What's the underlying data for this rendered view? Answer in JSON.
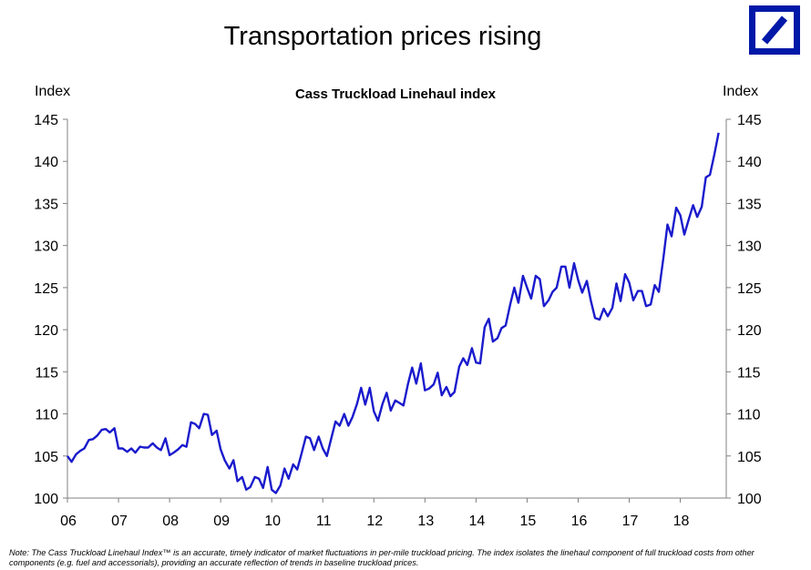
{
  "header": {
    "title": "Transportation prices rising"
  },
  "logo": {
    "name": "Deutsche Bank logo",
    "color": "#0018a8"
  },
  "note": "Note: The Cass Truckload Linehaul Index™ is an accurate, timely indicator of market fluctuations in per-mile truckload pricing. The index isolates the linehaul component of full truckload costs from other components (e.g. fuel and accessorials), providing an accurate reflection of trends in baseline truckload prices.",
  "chart_data": {
    "type": "line",
    "title": "Cass Truckload Linehaul index",
    "ylabel_left": "Index",
    "ylabel_right": "Index",
    "ylim": [
      100,
      145
    ],
    "yticks": [
      100,
      105,
      110,
      115,
      120,
      125,
      130,
      135,
      140,
      145
    ],
    "xlim": [
      2006.0,
      2018.9
    ],
    "xticks": [
      {
        "value": 2006,
        "label": "06"
      },
      {
        "value": 2007,
        "label": "07"
      },
      {
        "value": 2008,
        "label": "08"
      },
      {
        "value": 2009,
        "label": "09"
      },
      {
        "value": 2010,
        "label": "10"
      },
      {
        "value": 2011,
        "label": "11"
      },
      {
        "value": 2012,
        "label": "12"
      },
      {
        "value": 2013,
        "label": "13"
      },
      {
        "value": 2014,
        "label": "14"
      },
      {
        "value": 2015,
        "label": "15"
      },
      {
        "value": 2016,
        "label": "16"
      },
      {
        "value": 2017,
        "label": "17"
      },
      {
        "value": 2018,
        "label": "18"
      }
    ],
    "grid": false,
    "legend": "none",
    "series": [
      {
        "color": "#1a1acc",
        "points": [
          [
            2006.0,
            105.0
          ],
          [
            2006.08,
            104.3
          ],
          [
            2006.17,
            105.2
          ],
          [
            2006.25,
            105.6
          ],
          [
            2006.33,
            105.9
          ],
          [
            2006.42,
            106.9
          ],
          [
            2006.5,
            107.0
          ],
          [
            2006.58,
            107.4
          ],
          [
            2006.67,
            108.1
          ],
          [
            2006.75,
            108.2
          ],
          [
            2006.83,
            107.8
          ],
          [
            2006.92,
            108.3
          ],
          [
            2007.0,
            105.9
          ],
          [
            2007.08,
            105.9
          ],
          [
            2007.17,
            105.5
          ],
          [
            2007.25,
            105.9
          ],
          [
            2007.33,
            105.4
          ],
          [
            2007.42,
            106.1
          ],
          [
            2007.5,
            106.0
          ],
          [
            2007.58,
            106.0
          ],
          [
            2007.67,
            106.5
          ],
          [
            2007.75,
            106.0
          ],
          [
            2007.83,
            105.7
          ],
          [
            2007.92,
            107.1
          ],
          [
            2008.0,
            105.1
          ],
          [
            2008.08,
            105.4
          ],
          [
            2008.17,
            105.8
          ],
          [
            2008.25,
            106.3
          ],
          [
            2008.33,
            106.1
          ],
          [
            2008.42,
            109.0
          ],
          [
            2008.5,
            108.8
          ],
          [
            2008.58,
            108.3
          ],
          [
            2008.67,
            110.0
          ],
          [
            2008.75,
            109.9
          ],
          [
            2008.83,
            107.5
          ],
          [
            2008.92,
            108.0
          ],
          [
            2009.0,
            105.8
          ],
          [
            2009.08,
            104.5
          ],
          [
            2009.17,
            103.5
          ],
          [
            2009.25,
            104.5
          ],
          [
            2009.33,
            102.0
          ],
          [
            2009.42,
            102.5
          ],
          [
            2009.5,
            101.0
          ],
          [
            2009.58,
            101.3
          ],
          [
            2009.67,
            102.5
          ],
          [
            2009.75,
            102.3
          ],
          [
            2009.83,
            101.2
          ],
          [
            2009.92,
            103.7
          ],
          [
            2010.0,
            101.0
          ],
          [
            2010.08,
            100.6
          ],
          [
            2010.17,
            101.5
          ],
          [
            2010.25,
            103.5
          ],
          [
            2010.33,
            102.3
          ],
          [
            2010.42,
            104.0
          ],
          [
            2010.5,
            103.4
          ],
          [
            2010.58,
            105.2
          ],
          [
            2010.67,
            107.3
          ],
          [
            2010.75,
            107.1
          ],
          [
            2010.83,
            105.7
          ],
          [
            2010.92,
            107.3
          ],
          [
            2011.0,
            105.9
          ],
          [
            2011.08,
            105.0
          ],
          [
            2011.17,
            107.2
          ],
          [
            2011.25,
            109.1
          ],
          [
            2011.33,
            108.6
          ],
          [
            2011.42,
            110.0
          ],
          [
            2011.5,
            108.6
          ],
          [
            2011.58,
            109.6
          ],
          [
            2011.67,
            111.2
          ],
          [
            2011.75,
            113.1
          ],
          [
            2011.83,
            111.1
          ],
          [
            2011.92,
            113.1
          ],
          [
            2012.0,
            110.3
          ],
          [
            2012.08,
            109.2
          ],
          [
            2012.17,
            111.2
          ],
          [
            2012.25,
            112.5
          ],
          [
            2012.33,
            110.4
          ],
          [
            2012.42,
            111.6
          ],
          [
            2012.5,
            111.3
          ],
          [
            2012.58,
            111.0
          ],
          [
            2012.67,
            113.6
          ],
          [
            2012.75,
            115.5
          ],
          [
            2012.83,
            113.6
          ],
          [
            2012.92,
            116.0
          ],
          [
            2013.0,
            112.8
          ],
          [
            2013.08,
            113.0
          ],
          [
            2013.17,
            113.5
          ],
          [
            2013.25,
            114.9
          ],
          [
            2013.33,
            112.2
          ],
          [
            2013.42,
            113.2
          ],
          [
            2013.5,
            112.1
          ],
          [
            2013.58,
            112.6
          ],
          [
            2013.67,
            115.6
          ],
          [
            2013.75,
            116.6
          ],
          [
            2013.83,
            115.8
          ],
          [
            2013.92,
            117.8
          ],
          [
            2014.0,
            116.1
          ],
          [
            2014.08,
            116.0
          ],
          [
            2014.17,
            120.3
          ],
          [
            2014.25,
            121.3
          ],
          [
            2014.33,
            118.6
          ],
          [
            2014.42,
            119.0
          ],
          [
            2014.5,
            120.2
          ],
          [
            2014.58,
            120.5
          ],
          [
            2014.67,
            123.0
          ],
          [
            2014.75,
            125.0
          ],
          [
            2014.83,
            123.2
          ],
          [
            2014.92,
            126.4
          ],
          [
            2015.0,
            125.0
          ],
          [
            2015.08,
            123.7
          ],
          [
            2015.17,
            126.4
          ],
          [
            2015.25,
            126.0
          ],
          [
            2015.33,
            122.8
          ],
          [
            2015.42,
            123.5
          ],
          [
            2015.5,
            124.5
          ],
          [
            2015.58,
            125.0
          ],
          [
            2015.67,
            127.5
          ],
          [
            2015.75,
            127.5
          ],
          [
            2015.83,
            125.0
          ],
          [
            2015.92,
            127.9
          ],
          [
            2016.0,
            125.9
          ],
          [
            2016.08,
            124.4
          ],
          [
            2016.17,
            125.8
          ],
          [
            2016.25,
            123.4
          ],
          [
            2016.33,
            121.4
          ],
          [
            2016.42,
            121.2
          ],
          [
            2016.5,
            122.5
          ],
          [
            2016.58,
            121.6
          ],
          [
            2016.67,
            122.6
          ],
          [
            2016.75,
            125.5
          ],
          [
            2016.83,
            123.4
          ],
          [
            2016.92,
            126.6
          ],
          [
            2017.0,
            125.6
          ],
          [
            2017.08,
            123.5
          ],
          [
            2017.17,
            124.6
          ],
          [
            2017.25,
            124.6
          ],
          [
            2017.33,
            122.8
          ],
          [
            2017.42,
            123.0
          ],
          [
            2017.5,
            125.3
          ],
          [
            2017.58,
            124.5
          ],
          [
            2017.67,
            128.6
          ],
          [
            2017.75,
            132.5
          ],
          [
            2017.83,
            131.1
          ],
          [
            2017.92,
            134.5
          ],
          [
            2018.0,
            133.6
          ],
          [
            2018.08,
            131.3
          ],
          [
            2018.17,
            133.2
          ],
          [
            2018.25,
            134.8
          ],
          [
            2018.33,
            133.4
          ],
          [
            2018.42,
            134.6
          ],
          [
            2018.5,
            138.1
          ],
          [
            2018.58,
            138.4
          ],
          [
            2018.67,
            140.9
          ],
          [
            2018.75,
            143.4
          ]
        ]
      }
    ]
  }
}
